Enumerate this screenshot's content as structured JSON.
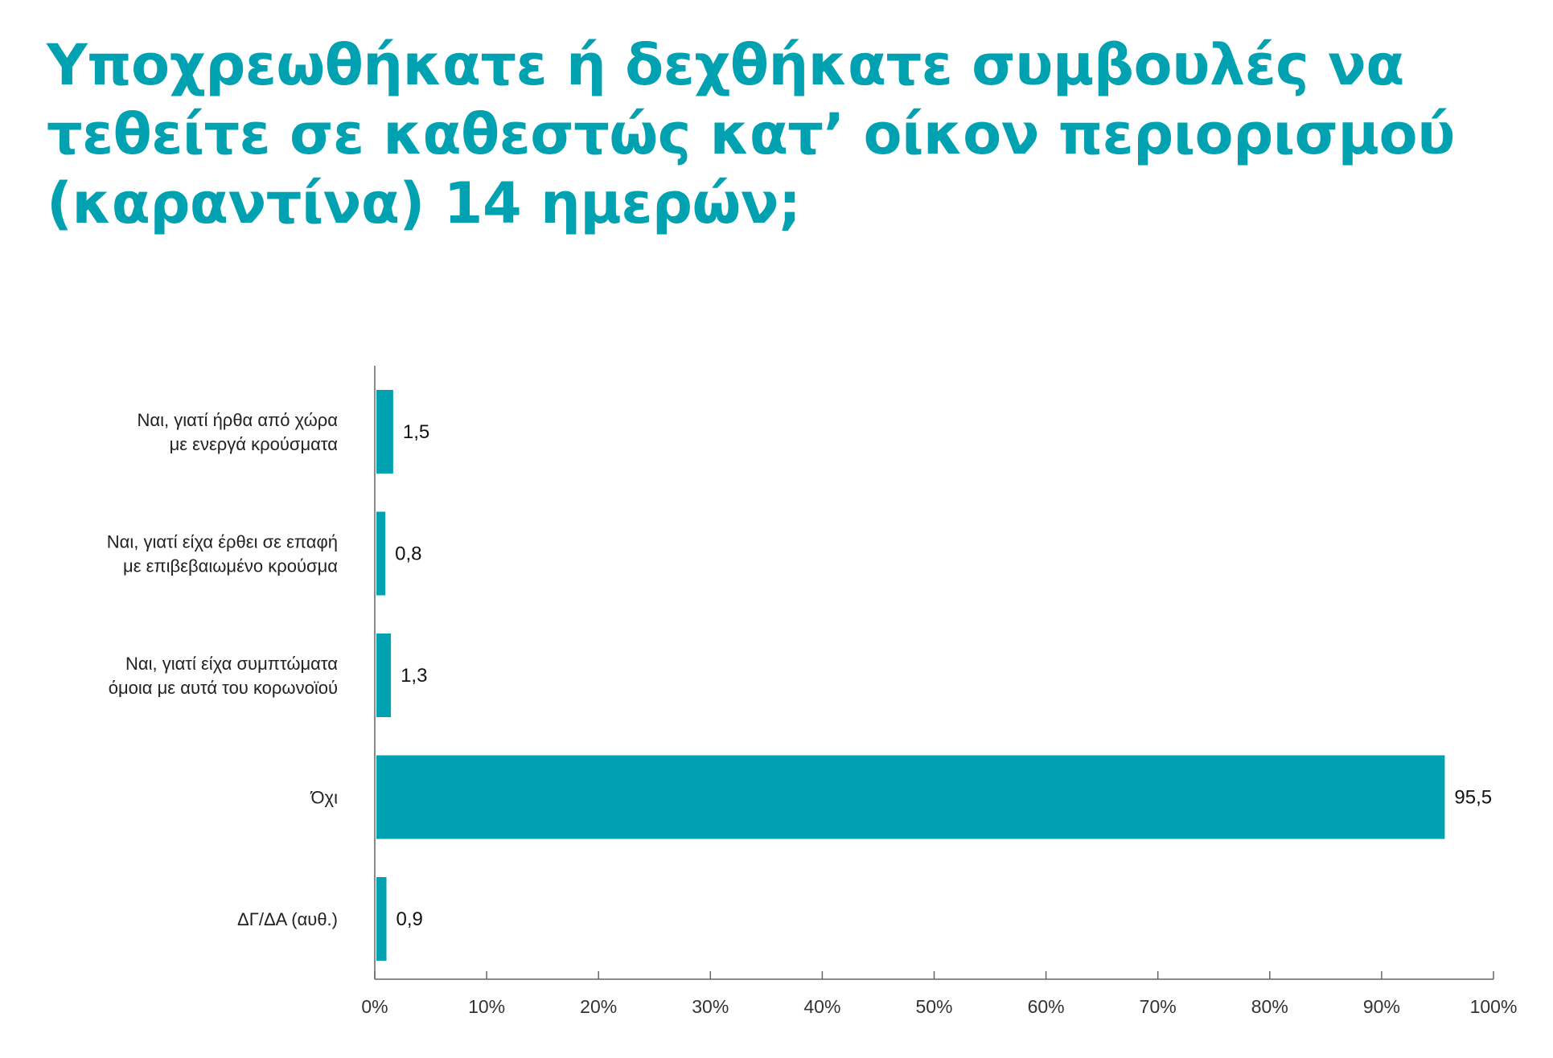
{
  "chart_data": {
    "type": "bar",
    "orientation": "horizontal",
    "title": "Υποχρεωθήκατε ή δεχθήκατε συμβουλές να\nτεθείτε σε καθεστώς κατ’ οίκον περιορισμού\n(καραντίνα) 14 ημερών;",
    "categories": [
      [
        "Ναι, γιατί ήρθα από χώρα",
        "με ενεργά κρούσματα"
      ],
      [
        "Ναι, γιατί είχα έρθει σε επαφή",
        "με επιβεβαιωμένο κρούσμα"
      ],
      [
        "Ναι, γιατί είχα συμπτώματα",
        "όμοια με αυτά του κορωνοϊού"
      ],
      [
        "Όχι"
      ],
      [
        "ΔΓ/ΔΑ (αυθ.)"
      ]
    ],
    "values": [
      1.5,
      0.8,
      1.3,
      95.5,
      0.9
    ],
    "value_labels": [
      "1,5",
      "0,8",
      "1,3",
      "95,5",
      "0,9"
    ],
    "xlim": [
      0,
      100
    ],
    "xticks": [
      "0%",
      "10%",
      "20%",
      "30%",
      "40%",
      "50%",
      "60%",
      "70%",
      "80%",
      "90%",
      "100%"
    ],
    "bar_color": "#00a1b0",
    "grid": false
  }
}
